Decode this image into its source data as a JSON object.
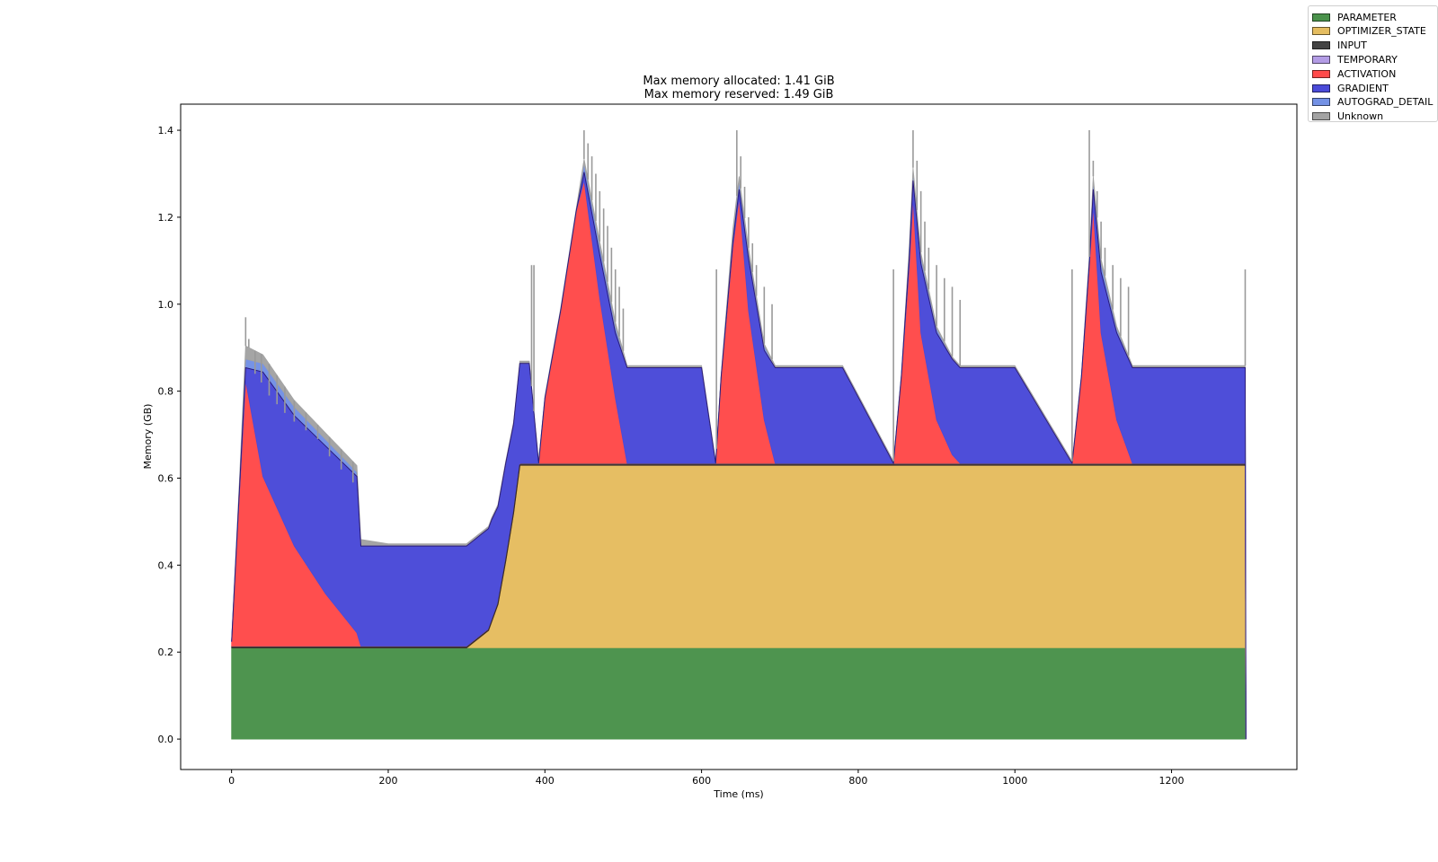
{
  "chart_data": {
    "type": "area",
    "stacked": true,
    "title": "Max memory allocated: 1.41 GiB",
    "subtitle": "Max memory reserved: 1.49 GiB",
    "xlabel": "Time (ms)",
    "ylabel": "Memory (GB)",
    "xlim": [
      -65,
      1360
    ],
    "ylim": [
      -0.07,
      1.46
    ],
    "xticks": [
      0,
      200,
      400,
      600,
      800,
      1000,
      1200
    ],
    "yticks": [
      0.0,
      0.2,
      0.4,
      0.6,
      0.8,
      1.0,
      1.2,
      1.4
    ],
    "legend_position": "upper-right-outside",
    "x": [
      0,
      10,
      18,
      40,
      80,
      120,
      160,
      165,
      200,
      300,
      328,
      332,
      340,
      350,
      360,
      368,
      380,
      392,
      400,
      420,
      440,
      450,
      470,
      490,
      505,
      600,
      618,
      625,
      640,
      648,
      660,
      680,
      694,
      700,
      780,
      845,
      855,
      865,
      870,
      880,
      900,
      920,
      930,
      1000,
      1073,
      1085,
      1095,
      1100,
      1110,
      1130,
      1150,
      1160,
      1200,
      1294,
      1295
    ],
    "series": [
      {
        "name": "PARAMETER",
        "color": "#4a924b",
        "values": [
          0.21,
          0.21,
          0.21,
          0.21,
          0.21,
          0.21,
          0.21,
          0.21,
          0.21,
          0.21,
          0.21,
          0.21,
          0.21,
          0.21,
          0.21,
          0.21,
          0.21,
          0.21,
          0.21,
          0.21,
          0.21,
          0.21,
          0.21,
          0.21,
          0.21,
          0.21,
          0.21,
          0.21,
          0.21,
          0.21,
          0.21,
          0.21,
          0.21,
          0.21,
          0.21,
          0.21,
          0.21,
          0.21,
          0.21,
          0.21,
          0.21,
          0.21,
          0.21,
          0.21,
          0.21,
          0.21,
          0.21,
          0.21,
          0.21,
          0.21,
          0.21,
          0.21,
          0.21,
          0.21,
          0
        ]
      },
      {
        "name": "OPTIMIZER_STATE",
        "color": "#e5bd60",
        "values": [
          0,
          0,
          0,
          0,
          0,
          0,
          0,
          0,
          0,
          0,
          0.04,
          0.06,
          0.1,
          0.2,
          0.31,
          0.42,
          0.42,
          0.42,
          0.42,
          0.42,
          0.42,
          0.42,
          0.42,
          0.42,
          0.42,
          0.42,
          0.42,
          0.42,
          0.42,
          0.42,
          0.42,
          0.42,
          0.42,
          0.42,
          0.42,
          0.42,
          0.42,
          0.42,
          0.42,
          0.42,
          0.42,
          0.42,
          0.42,
          0.42,
          0.42,
          0.42,
          0.42,
          0.42,
          0.42,
          0.42,
          0.42,
          0.42,
          0.42,
          0.42,
          0
        ]
      },
      {
        "name": "INPUT",
        "color": "#444444",
        "values": [
          0.004,
          0.004,
          0.004,
          0.004,
          0.004,
          0.004,
          0.004,
          0.004,
          0.004,
          0.004,
          0.004,
          0.004,
          0.004,
          0.004,
          0.004,
          0.004,
          0.004,
          0.004,
          0.004,
          0.004,
          0.004,
          0.004,
          0.004,
          0.004,
          0.004,
          0.004,
          0.004,
          0.004,
          0.004,
          0.004,
          0.004,
          0.004,
          0.004,
          0.004,
          0.004,
          0.004,
          0.004,
          0.004,
          0.004,
          0.004,
          0.004,
          0.004,
          0.004,
          0.004,
          0.004,
          0.004,
          0.004,
          0.004,
          0.004,
          0.004,
          0.004,
          0.004,
          0.004,
          0.004,
          0
        ]
      },
      {
        "name": "TEMPORARY",
        "color": "#b39ce5",
        "values": [
          0,
          0,
          0,
          0,
          0,
          0,
          0,
          0,
          0,
          0,
          0,
          0,
          0,
          0,
          0,
          0,
          0,
          0,
          0,
          0,
          0,
          0,
          0,
          0,
          0,
          0,
          0,
          0,
          0,
          0,
          0,
          0,
          0,
          0,
          0,
          0,
          0,
          0,
          0,
          0,
          0,
          0,
          0,
          0,
          0,
          0,
          0,
          0,
          0,
          0,
          0,
          0,
          0,
          0,
          0
        ]
      },
      {
        "name": "ACTIVATION",
        "color": "#ff4a4a",
        "values": [
          0.01,
          0.35,
          0.61,
          0.39,
          0.23,
          0.12,
          0.03,
          0,
          0,
          0,
          0,
          0,
          0,
          0,
          0,
          0,
          0,
          0,
          0.15,
          0.35,
          0.58,
          0.65,
          0.38,
          0.15,
          0,
          0,
          0,
          0.2,
          0.5,
          0.61,
          0.35,
          0.1,
          0,
          0,
          0,
          0,
          0.2,
          0.45,
          0.61,
          0.3,
          0.1,
          0.02,
          0,
          0,
          0,
          0.2,
          0.45,
          0.59,
          0.3,
          0.1,
          0,
          0,
          0,
          0,
          0
        ]
      },
      {
        "name": "GRADIENT",
        "color": "#4a4ad8",
        "values": [
          0,
          0.01,
          0.03,
          0.24,
          0.3,
          0.34,
          0.36,
          0.23,
          0.23,
          0.23,
          0.23,
          0.23,
          0.22,
          0.22,
          0.2,
          0.23,
          0.23,
          0,
          0,
          0,
          0,
          0.02,
          0.1,
          0.15,
          0.22,
          0.22,
          0,
          0,
          0.01,
          0.02,
          0.12,
          0.16,
          0.22,
          0.22,
          0.22,
          0,
          0,
          0.02,
          0.04,
          0.16,
          0.2,
          0.22,
          0.22,
          0.22,
          0,
          0,
          0.01,
          0.04,
          0.14,
          0.2,
          0.22,
          0.22,
          0.22,
          0.22,
          0
        ]
      },
      {
        "name": "AUTOGRAD_DETAIL",
        "color": "#7391e5",
        "values": [
          0.003,
          0.01,
          0.02,
          0.02,
          0.02,
          0.015,
          0.01,
          0,
          0,
          0,
          0,
          0,
          0,
          0,
          0,
          0,
          0,
          0,
          0,
          0,
          0,
          0.02,
          0.02,
          0.015,
          0,
          0,
          0,
          0,
          0.02,
          0.02,
          0.015,
          0.01,
          0,
          0,
          0,
          0,
          0,
          0.015,
          0.02,
          0.015,
          0.01,
          0,
          0,
          0,
          0,
          0,
          0.01,
          0.02,
          0.02,
          0.01,
          0,
          0,
          0,
          0,
          0
        ]
      },
      {
        "name": "Unknown",
        "color": "#a3a3a3",
        "values": [
          0.001,
          0.01,
          0.03,
          0.02,
          0.015,
          0.015,
          0.015,
          0.015,
          0.005,
          0.005,
          0.005,
          0.005,
          0.005,
          0.005,
          0.005,
          0.005,
          0.005,
          0.005,
          0.005,
          0.005,
          0.005,
          0.01,
          0.01,
          0.01,
          0.005,
          0.005,
          0.005,
          0.005,
          0.01,
          0.01,
          0.01,
          0.005,
          0.005,
          0.005,
          0.005,
          0.005,
          0.005,
          0.01,
          0.01,
          0.01,
          0.005,
          0.005,
          0.005,
          0.005,
          0.005,
          0.005,
          0.005,
          0.01,
          0.01,
          0.005,
          0.005,
          0.005,
          0.005,
          0.005,
          0
        ]
      }
    ],
    "spikes": [
      {
        "x": 18,
        "top": 0.97
      },
      {
        "x": 22,
        "top": 0.92
      },
      {
        "x": 30,
        "top": 0.84
      },
      {
        "x": 38,
        "top": 0.82
      },
      {
        "x": 48,
        "top": 0.79
      },
      {
        "x": 58,
        "top": 0.77
      },
      {
        "x": 68,
        "top": 0.75
      },
      {
        "x": 80,
        "top": 0.73
      },
      {
        "x": 95,
        "top": 0.71
      },
      {
        "x": 110,
        "top": 0.69
      },
      {
        "x": 125,
        "top": 0.65
      },
      {
        "x": 140,
        "top": 0.62
      },
      {
        "x": 155,
        "top": 0.59
      },
      {
        "x": 383,
        "top": 1.09
      },
      {
        "x": 386,
        "top": 1.09
      },
      {
        "x": 450,
        "top": 1.4
      },
      {
        "x": 455,
        "top": 1.37
      },
      {
        "x": 460,
        "top": 1.34
      },
      {
        "x": 465,
        "top": 1.3
      },
      {
        "x": 470,
        "top": 1.26
      },
      {
        "x": 475,
        "top": 1.22
      },
      {
        "x": 480,
        "top": 1.18
      },
      {
        "x": 485,
        "top": 1.13
      },
      {
        "x": 490,
        "top": 1.08
      },
      {
        "x": 495,
        "top": 1.04
      },
      {
        "x": 500,
        "top": 0.99
      },
      {
        "x": 619,
        "top": 1.08
      },
      {
        "x": 645,
        "top": 1.4
      },
      {
        "x": 650,
        "top": 1.34
      },
      {
        "x": 655,
        "top": 1.27
      },
      {
        "x": 660,
        "top": 1.2
      },
      {
        "x": 665,
        "top": 1.14
      },
      {
        "x": 670,
        "top": 1.09
      },
      {
        "x": 680,
        "top": 1.04
      },
      {
        "x": 690,
        "top": 1.0
      },
      {
        "x": 845,
        "top": 1.08
      },
      {
        "x": 870,
        "top": 1.4
      },
      {
        "x": 875,
        "top": 1.33
      },
      {
        "x": 880,
        "top": 1.26
      },
      {
        "x": 885,
        "top": 1.19
      },
      {
        "x": 890,
        "top": 1.13
      },
      {
        "x": 900,
        "top": 1.09
      },
      {
        "x": 910,
        "top": 1.06
      },
      {
        "x": 920,
        "top": 1.04
      },
      {
        "x": 930,
        "top": 1.01
      },
      {
        "x": 1073,
        "top": 1.08
      },
      {
        "x": 1095,
        "top": 1.4
      },
      {
        "x": 1100,
        "top": 1.33
      },
      {
        "x": 1105,
        "top": 1.26
      },
      {
        "x": 1110,
        "top": 1.19
      },
      {
        "x": 1115,
        "top": 1.13
      },
      {
        "x": 1125,
        "top": 1.09
      },
      {
        "x": 1135,
        "top": 1.06
      },
      {
        "x": 1145,
        "top": 1.04
      },
      {
        "x": 1294,
        "top": 1.08
      }
    ]
  }
}
